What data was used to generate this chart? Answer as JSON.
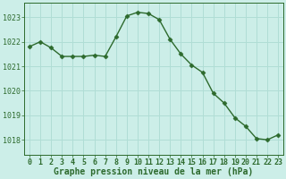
{
  "x": [
    0,
    1,
    2,
    3,
    4,
    5,
    6,
    7,
    8,
    9,
    10,
    11,
    12,
    13,
    14,
    15,
    16,
    17,
    18,
    19,
    20,
    21,
    22,
    23
  ],
  "y": [
    1021.8,
    1022.0,
    1021.75,
    1021.4,
    1021.4,
    1021.4,
    1021.45,
    1021.4,
    1022.2,
    1023.05,
    1023.2,
    1023.15,
    1022.9,
    1022.1,
    1021.5,
    1021.05,
    1020.75,
    1019.9,
    1019.5,
    1018.9,
    1018.55,
    1018.05,
    1018.0,
    1018.2
  ],
  "line_color": "#2d6a2d",
  "marker": "D",
  "marker_size": 2.5,
  "bg_color": "#cceee8",
  "grid_color": "#b0ddd5",
  "xlabel": "Graphe pression niveau de la mer (hPa)",
  "xlabel_color": "#2d6a2d",
  "tick_color": "#2d6a2d",
  "ylim_low": 1017.4,
  "ylim_high": 1023.6,
  "yticks": [
    1018,
    1019,
    1020,
    1021,
    1022,
    1023
  ],
  "xticks": [
    0,
    1,
    2,
    3,
    4,
    5,
    6,
    7,
    8,
    9,
    10,
    11,
    12,
    13,
    14,
    15,
    16,
    17,
    18,
    19,
    20,
    21,
    22,
    23
  ],
  "xtick_labels": [
    "0",
    "1",
    "2",
    "3",
    "4",
    "5",
    "6",
    "7",
    "8",
    "9",
    "10",
    "11",
    "12",
    "13",
    "14",
    "15",
    "16",
    "17",
    "18",
    "19",
    "20",
    "21",
    "22",
    "23"
  ],
  "line_width": 1.0,
  "spine_color": "#2d6a2d",
  "font_family": "monospace",
  "tick_fontsize": 6,
  "xlabel_fontsize": 7
}
